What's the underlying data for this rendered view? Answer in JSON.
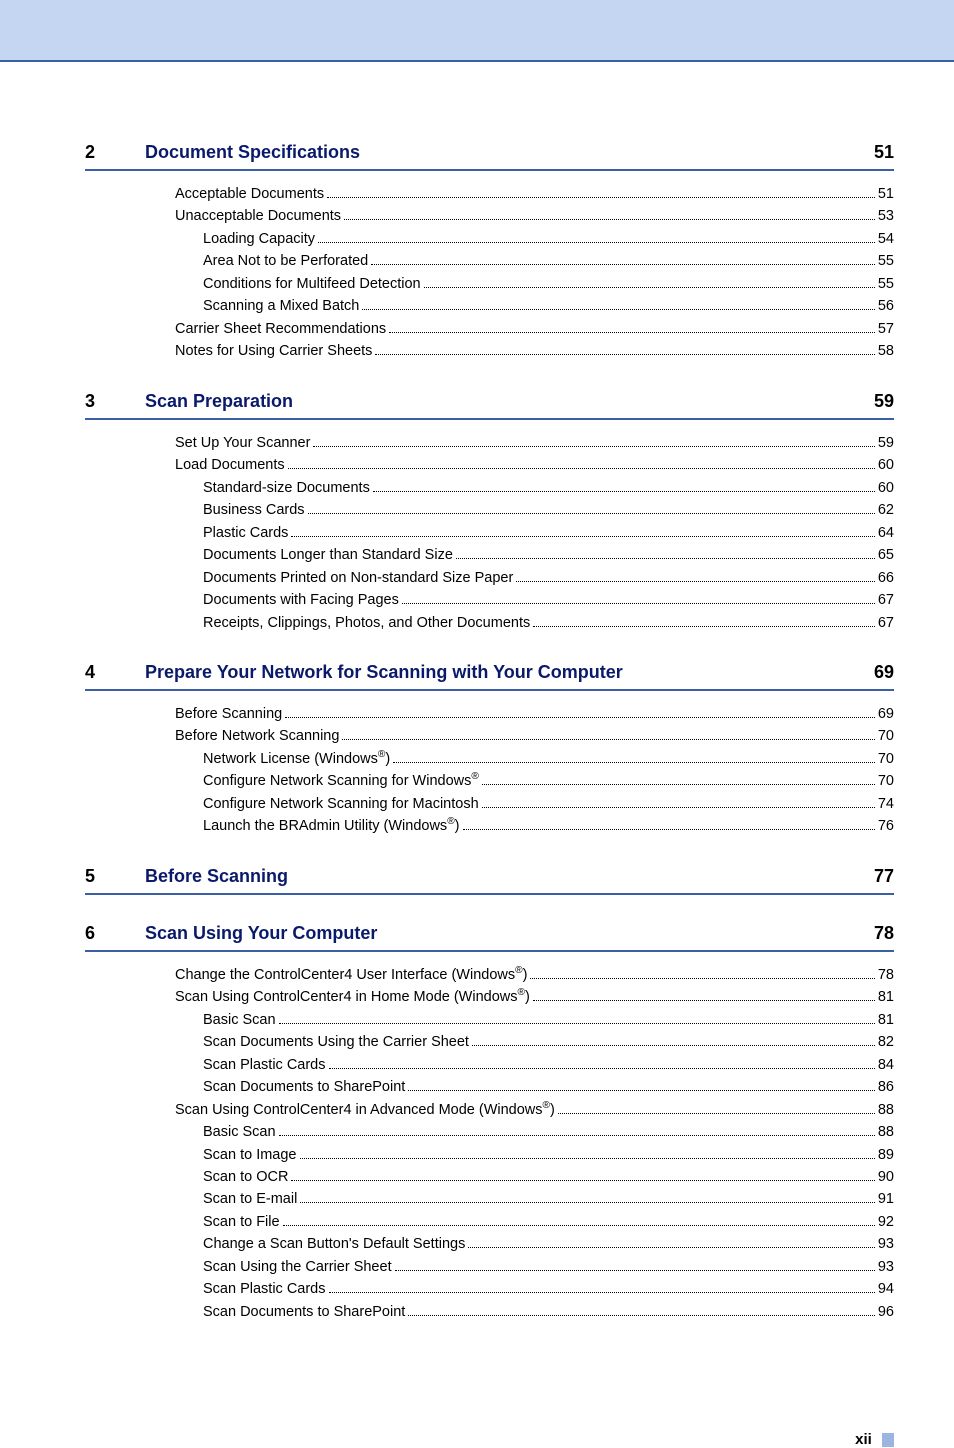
{
  "colors": {
    "top_bar_bg": "#c5d6f2",
    "rule": "#3b5fa4",
    "title": "#0a1a6b",
    "text": "#000000",
    "footer_mark": "#9db4e0"
  },
  "footer": {
    "page_number": "xii"
  },
  "sections": [
    {
      "number": "2",
      "title": "Document Specifications",
      "page": "51",
      "entries": [
        {
          "label": "Acceptable Documents",
          "page": "51",
          "indent": 1,
          "sup": null
        },
        {
          "label": "Unacceptable Documents",
          "page": "53",
          "indent": 1,
          "sup": null
        },
        {
          "label": "Loading Capacity",
          "page": "54",
          "indent": 2,
          "sup": null
        },
        {
          "label": "Area Not to be Perforated",
          "page": "55",
          "indent": 2,
          "sup": null
        },
        {
          "label": "Conditions for Multifeed Detection",
          "page": "55",
          "indent": 2,
          "sup": null
        },
        {
          "label": "Scanning a Mixed Batch",
          "page": "56",
          "indent": 2,
          "sup": null
        },
        {
          "label": "Carrier Sheet Recommendations ",
          "page": "57",
          "indent": 1,
          "sup": null
        },
        {
          "label": "Notes for Using Carrier Sheets",
          "page": "58",
          "indent": 1,
          "sup": null
        }
      ]
    },
    {
      "number": "3",
      "title": "Scan Preparation",
      "page": "59",
      "entries": [
        {
          "label": "Set Up Your Scanner",
          "page": "59",
          "indent": 1,
          "sup": null
        },
        {
          "label": "Load Documents",
          "page": "60",
          "indent": 1,
          "sup": null
        },
        {
          "label": "Standard-size Documents ",
          "page": "60",
          "indent": 2,
          "sup": null
        },
        {
          "label": "Business Cards ",
          "page": "62",
          "indent": 2,
          "sup": null
        },
        {
          "label": "Plastic Cards ",
          "page": "64",
          "indent": 2,
          "sup": null
        },
        {
          "label": "Documents Longer than Standard Size ",
          "page": "65",
          "indent": 2,
          "sup": null
        },
        {
          "label": "Documents Printed on Non-standard Size Paper",
          "page": "66",
          "indent": 2,
          "sup": null
        },
        {
          "label": "Documents with Facing Pages ",
          "page": "67",
          "indent": 2,
          "sup": null
        },
        {
          "label": "Receipts, Clippings, Photos, and Other Documents ",
          "page": "67",
          "indent": 2,
          "sup": null
        }
      ]
    },
    {
      "number": "4",
      "title": "Prepare Your Network for Scanning with Your Computer",
      "page": "69",
      "entries": [
        {
          "label": "Before Scanning ",
          "page": "69",
          "indent": 1,
          "sup": null
        },
        {
          "label": "Before Network Scanning ",
          "page": "70",
          "indent": 1,
          "sup": null
        },
        {
          "label": "Network License (Windows",
          "page": "70",
          "indent": 2,
          "sup": "®",
          "sup_after": ")"
        },
        {
          "label": "Configure Network Scanning for Windows",
          "page": "70",
          "indent": 2,
          "sup": "®",
          "sup_after": ""
        },
        {
          "label": "Configure Network Scanning for Macintosh ",
          "page": "74",
          "indent": 2,
          "sup": null
        },
        {
          "label": "Launch the BRAdmin Utility (Windows",
          "page": "76",
          "indent": 2,
          "sup": "®",
          "sup_after": ")"
        }
      ]
    },
    {
      "number": "5",
      "title": "Before Scanning",
      "page": "77",
      "entries": []
    },
    {
      "number": "6",
      "title": "Scan Using Your Computer",
      "page": "78",
      "entries": [
        {
          "label": "Change the ControlCenter4 User Interface (Windows",
          "page": "78",
          "indent": 1,
          "sup": "®",
          "sup_after": ")"
        },
        {
          "label": "Scan Using ControlCenter4 in Home Mode (Windows",
          "page": "81",
          "indent": 1,
          "sup": "®",
          "sup_after": ") "
        },
        {
          "label": "Basic Scan",
          "page": "81",
          "indent": 2,
          "sup": null
        },
        {
          "label": "Scan Documents Using the Carrier Sheet",
          "page": "82",
          "indent": 2,
          "sup": null
        },
        {
          "label": "Scan Plastic Cards ",
          "page": "84",
          "indent": 2,
          "sup": null
        },
        {
          "label": "Scan Documents to SharePoint ",
          "page": "86",
          "indent": 2,
          "sup": null
        },
        {
          "label": "Scan Using ControlCenter4 in Advanced Mode (Windows",
          "page": "88",
          "indent": 1,
          "sup": "®",
          "sup_after": ")"
        },
        {
          "label": "Basic Scan",
          "page": "88",
          "indent": 2,
          "sup": null
        },
        {
          "label": "Scan to Image ",
          "page": "89",
          "indent": 2,
          "sup": null
        },
        {
          "label": "Scan to OCR ",
          "page": "90",
          "indent": 2,
          "sup": null
        },
        {
          "label": "Scan to E-mail ",
          "page": "91",
          "indent": 2,
          "sup": null
        },
        {
          "label": "Scan to File",
          "page": "92",
          "indent": 2,
          "sup": null
        },
        {
          "label": "Change a Scan Button's Default Settings ",
          "page": "93",
          "indent": 2,
          "sup": null
        },
        {
          "label": "Scan Using the Carrier Sheet",
          "page": "93",
          "indent": 2,
          "sup": null
        },
        {
          "label": "Scan Plastic Cards ",
          "page": "94",
          "indent": 2,
          "sup": null
        },
        {
          "label": "Scan Documents to SharePoint ",
          "page": "96",
          "indent": 2,
          "sup": null
        }
      ]
    }
  ]
}
